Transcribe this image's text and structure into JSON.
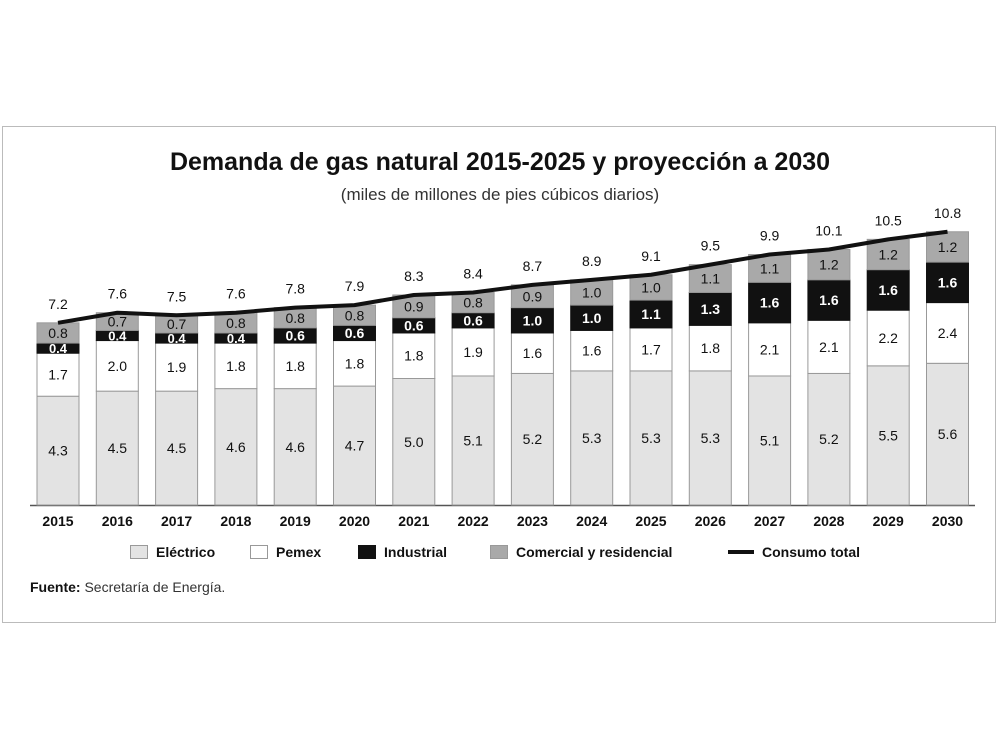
{
  "chart_data": {
    "type": "bar",
    "stacked": true,
    "title": "Demanda de gas natural 2015-2025 y proyección a 2030",
    "subtitle": "(miles de millones de pies cúbicos diarios)",
    "categories": [
      "2015",
      "2016",
      "2017",
      "2018",
      "2019",
      "2020",
      "2021",
      "2022",
      "2023",
      "2024",
      "2025",
      "2026",
      "2027",
      "2028",
      "2029",
      "2030"
    ],
    "series": [
      {
        "name": "Eléctrico",
        "color": "#e3e3e3",
        "values": [
          4.3,
          4.5,
          4.5,
          4.6,
          4.6,
          4.7,
          5.0,
          5.1,
          5.2,
          5.3,
          5.3,
          5.3,
          5.1,
          5.2,
          5.5,
          5.6
        ]
      },
      {
        "name": "Pemex",
        "color": "#ffffff",
        "values": [
          1.7,
          2.0,
          1.9,
          1.8,
          1.8,
          1.8,
          1.8,
          1.9,
          1.6,
          1.6,
          1.7,
          1.8,
          2.1,
          2.1,
          2.2,
          2.4
        ]
      },
      {
        "name": "Industrial",
        "color": "#111111",
        "values": [
          0.4,
          0.4,
          0.4,
          0.4,
          0.6,
          0.6,
          0.6,
          0.6,
          1.0,
          1.0,
          1.1,
          1.3,
          1.6,
          1.6,
          1.6,
          1.6
        ]
      },
      {
        "name": "Comercial y residencial",
        "color": "#a9a9a9",
        "values": [
          0.8,
          0.7,
          0.7,
          0.8,
          0.8,
          0.8,
          0.9,
          0.8,
          0.9,
          1.0,
          1.0,
          1.1,
          1.1,
          1.2,
          1.2,
          1.2
        ]
      }
    ],
    "line": {
      "name": "Consumo total",
      "color": "#111111",
      "values": [
        7.2,
        7.6,
        7.5,
        7.6,
        7.8,
        7.9,
        8.3,
        8.4,
        8.7,
        8.9,
        9.1,
        9.5,
        9.9,
        10.1,
        10.5,
        10.8
      ]
    },
    "legend_position": "bottom",
    "grid": false
  },
  "source": {
    "label": "Fuente:",
    "text": " Secretaría de Energía."
  }
}
